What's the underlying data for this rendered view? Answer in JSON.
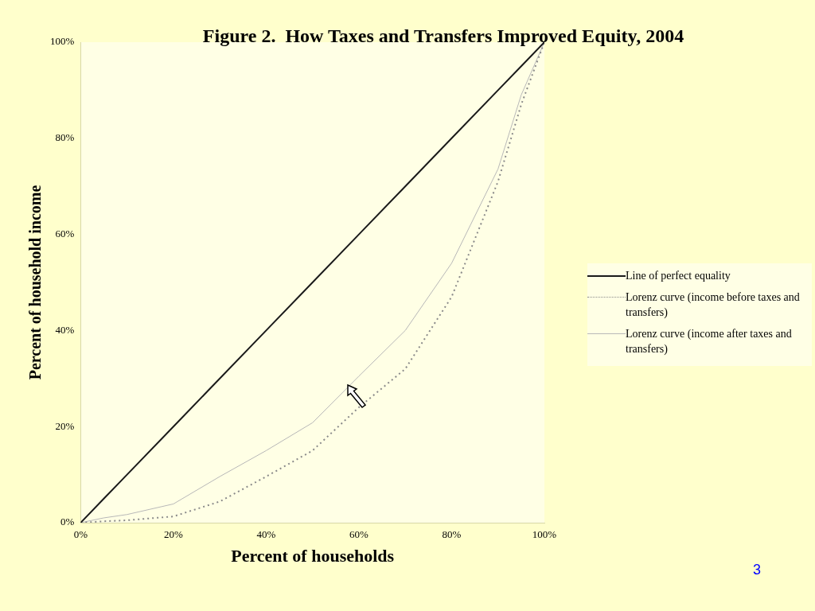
{
  "chart_data": {
    "type": "line",
    "title": "Figure 2.  How Taxes and Transfers Improved Equity, 2004",
    "xlabel": "Percent of households",
    "ylabel": "Percent of household income",
    "x": [
      0,
      5,
      10,
      20,
      30,
      40,
      50,
      60,
      70,
      80,
      90,
      95,
      100
    ],
    "series": [
      {
        "name": "Line of perfect equality",
        "color": "#1a1a1a",
        "line_style": "solid",
        "values": [
          0,
          5,
          10,
          20,
          30,
          40,
          50,
          60,
          70,
          80,
          90,
          95,
          100
        ]
      },
      {
        "name": "Lorenz curve (income before taxes and transfers)",
        "color": "#8a8a8a",
        "line_style": "dotted",
        "values": [
          0,
          0.3,
          0.5,
          1.3,
          4.4,
          9.6,
          15,
          24,
          32,
          47,
          71,
          87,
          100
        ]
      },
      {
        "name": "Lorenz curve (income after taxes and transfers)",
        "color": "#b8b8b8",
        "line_style": "solid",
        "values": [
          0,
          1,
          1.7,
          3.9,
          9.6,
          15,
          20.8,
          30.5,
          40,
          54,
          73.6,
          89,
          100
        ]
      }
    ],
    "xlim": [
      0,
      100
    ],
    "ylim": [
      0,
      100
    ],
    "xticks": [
      {
        "value": 0,
        "label": "0%"
      },
      {
        "value": 20,
        "label": "20%"
      },
      {
        "value": 40,
        "label": "40%"
      },
      {
        "value": 60,
        "label": "60%"
      },
      {
        "value": 80,
        "label": "80%"
      },
      {
        "value": 100,
        "label": "100%"
      }
    ],
    "yticks": [
      {
        "value": 0,
        "label": "0%"
      },
      {
        "value": 20,
        "label": "20%"
      },
      {
        "value": 40,
        "label": "40%"
      },
      {
        "value": 60,
        "label": "60%"
      },
      {
        "value": 80,
        "label": "80%"
      },
      {
        "value": 100,
        "label": "100%"
      }
    ],
    "grid": false,
    "legend": "right",
    "marker": "none",
    "annotations": [
      "3"
    ]
  }
}
